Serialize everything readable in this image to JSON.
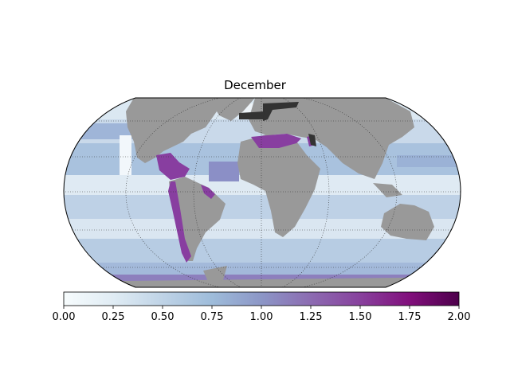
{
  "title": "December",
  "colorbar": {
    "min": 0.0,
    "max": 2.0,
    "ticks": [
      "0.00",
      "0.25",
      "0.50",
      "0.75",
      "1.00",
      "1.25",
      "1.50",
      "1.75",
      "2.00"
    ],
    "colors": [
      "#f7fcfd",
      "#e0ecf4",
      "#bfd3e6",
      "#9ebcda",
      "#8c96c6",
      "#8c6bb1",
      "#88419d",
      "#810f7c",
      "#4d004b"
    ]
  },
  "map": {
    "projection": "Robinson",
    "land_color": "#999999",
    "missing_color": "#333333",
    "graticule": true
  }
}
